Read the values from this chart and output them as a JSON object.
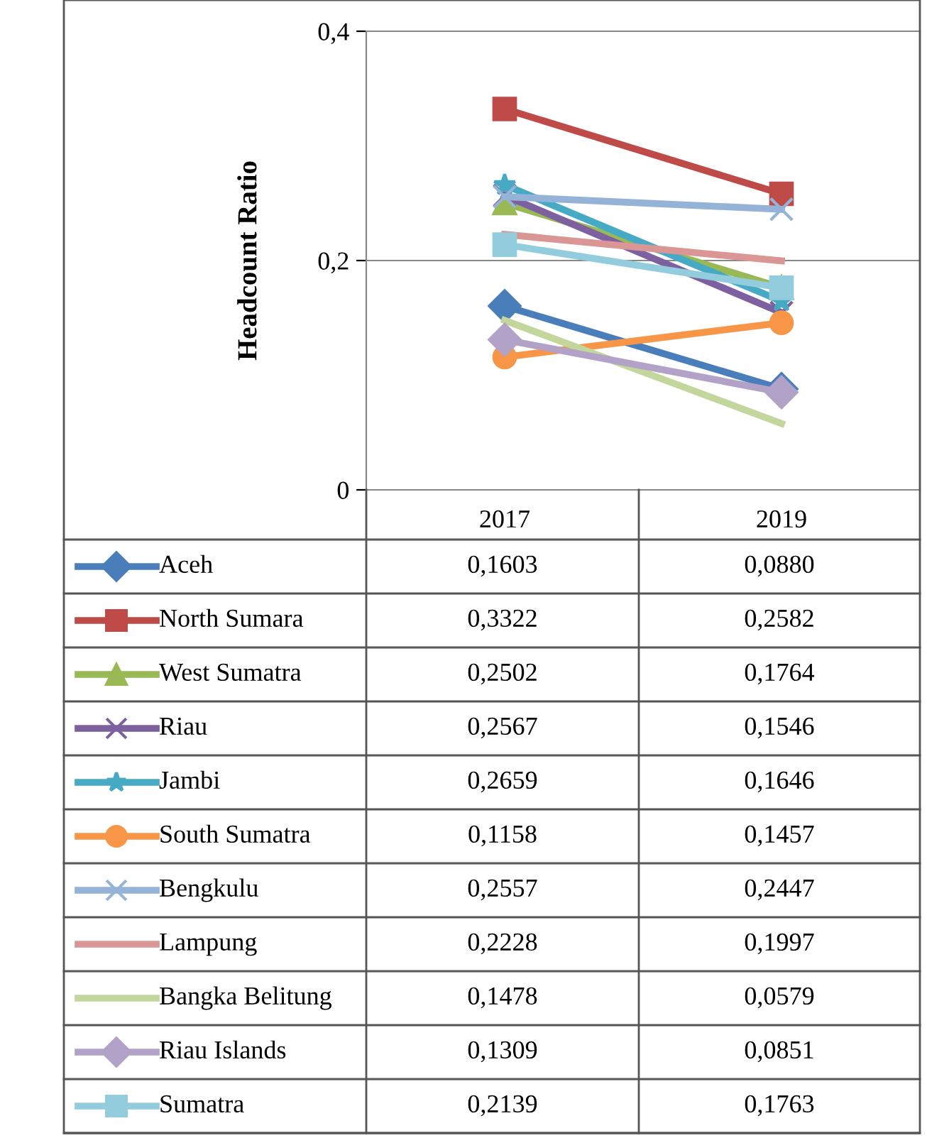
{
  "chart_data": {
    "type": "line",
    "ylabel": "Headcount Ratio",
    "categories": [
      "2017",
      "2019"
    ],
    "ylim": [
      0,
      0.4
    ],
    "yticks": [
      0,
      {
        "value": 0.2,
        "label": "0,2"
      },
      {
        "value": 0.4,
        "label": "0,4"
      }
    ],
    "grid": "y",
    "legend": "bottom",
    "series": [
      {
        "name": "Aceh",
        "color": "#4a7ebb",
        "marker": "diamond",
        "values": [
          0.1603,
          0.088
        ],
        "value_labels": [
          "0,1603",
          "0,0880"
        ]
      },
      {
        "name": "North Sumara",
        "color": "#be4b48",
        "marker": "square",
        "values": [
          0.3322,
          0.2582
        ],
        "value_labels": [
          "0,3322",
          "0,2582"
        ]
      },
      {
        "name": "West Sumatra",
        "color": "#98b954",
        "marker": "triangle",
        "values": [
          0.2502,
          0.1764
        ],
        "value_labels": [
          "0,2502",
          "0,1764"
        ]
      },
      {
        "name": "Riau",
        "color": "#7d60a0",
        "marker": "cross",
        "values": [
          0.2567,
          0.1546
        ],
        "value_labels": [
          "0,2567",
          "0,1546"
        ]
      },
      {
        "name": "Jambi",
        "color": "#46aac5",
        "marker": "star",
        "values": [
          0.2659,
          0.1646
        ],
        "value_labels": [
          "0,2659",
          "0,1646"
        ]
      },
      {
        "name": "South Sumatra",
        "color": "#f79646",
        "marker": "circle",
        "values": [
          0.1158,
          0.1457
        ],
        "value_labels": [
          "0,1158",
          "0,1457"
        ]
      },
      {
        "name": "Bengkulu",
        "color": "#95b3d7",
        "marker": "cross",
        "values": [
          0.2557,
          0.2447
        ],
        "value_labels": [
          "0,2557",
          "0,2447"
        ]
      },
      {
        "name": "Lampung",
        "color": "#d99694",
        "marker": "none",
        "values": [
          0.2228,
          0.1997
        ],
        "value_labels": [
          "0,2228",
          "0,1997"
        ]
      },
      {
        "name": "Bangka Belitung",
        "color": "#c3d69b",
        "marker": "none",
        "values": [
          0.1478,
          0.0579
        ],
        "value_labels": [
          "0,1478",
          "0,0579"
        ]
      },
      {
        "name": "Riau Islands",
        "color": "#b3a2c7",
        "marker": "diamond",
        "values": [
          0.1309,
          0.0851
        ],
        "value_labels": [
          "0,1309",
          "0,0851"
        ]
      },
      {
        "name": "Sumatra",
        "color": "#93cddd",
        "marker": "square",
        "values": [
          0.2139,
          0.1763
        ],
        "value_labels": [
          "0,2139",
          "0,1763"
        ]
      }
    ]
  }
}
